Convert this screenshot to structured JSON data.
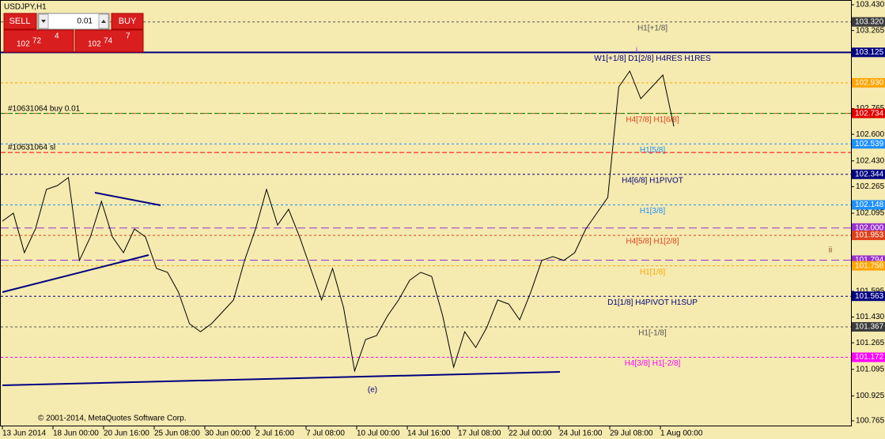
{
  "window": {
    "title": "USDJPY,H1"
  },
  "trade_panel": {
    "sell": "SELL",
    "buy": "BUY",
    "volume": "0.01",
    "bid": {
      "big": "102",
      "main": "72",
      "sup": "4"
    },
    "ask": {
      "big": "102",
      "main": "74",
      "sup": "7"
    }
  },
  "price_axis": {
    "range": [
      100.765,
      103.43
    ],
    "ticks": [
      {
        "value": 103.43,
        "label": "103.430"
      },
      {
        "value": 103.265,
        "label": "103.265"
      },
      {
        "value": 102.765,
        "label": "102.765"
      },
      {
        "value": 102.6,
        "label": "102.600"
      },
      {
        "value": 102.43,
        "label": "102.430"
      },
      {
        "value": 102.265,
        "label": "102.265"
      },
      {
        "value": 102.095,
        "label": "102.095"
      },
      {
        "value": 101.595,
        "label": "101.595"
      },
      {
        "value": 101.43,
        "label": "101.430"
      },
      {
        "value": 101.265,
        "label": "101.265"
      },
      {
        "value": 101.095,
        "label": "101.095"
      },
      {
        "value": 100.925,
        "label": "100.925"
      },
      {
        "value": 100.765,
        "label": "100.765"
      }
    ]
  },
  "time_axis": {
    "labels": [
      "13 Jun 2014",
      "18 Jun 00:00",
      "20 Jun 16:00",
      "25 Jun 08:00",
      "30 Jun 00:00",
      "2 Jul 16:00",
      "7 Jul 08:00",
      "10 Jul 00:00",
      "14 Jul 16:00",
      "17 Jul 08:00",
      "22 Jul 00:00",
      "24 Jul 16:00",
      "29 Jul 08:00",
      "1 Aug 00:00"
    ]
  },
  "levels": [
    {
      "price": 103.32,
      "label": "103.320",
      "color": "#555555",
      "tag_color": "#3c3c3c",
      "text": "H1[+1/8]"
    },
    {
      "price": 103.125,
      "label": "103.125",
      "color": "#000080",
      "tag_color": "#000080",
      "text": "W1[+1/8] D1[2/8] H4RES H1RES"
    },
    {
      "price": 102.93,
      "label": "102.930",
      "color": "#ffa500",
      "tag_color": "#ffa500"
    },
    {
      "price": 102.734,
      "label": "102.734",
      "color": "#e0401a",
      "tag_color": "#e00000",
      "text": "H4[7/8] H1[6/8]"
    },
    {
      "price": 102.539,
      "label": "102.539",
      "color": "#1e90ff",
      "tag_color": "#1e90ff",
      "text": "H1[5/8]"
    },
    {
      "price": 102.344,
      "label": "102.344",
      "color": "#000080",
      "tag_color": "#000080",
      "text": "H4[6/8] H1PIVOT"
    },
    {
      "price": 102.148,
      "label": "102.148",
      "color": "#1e90ff",
      "tag_color": "#1e90ff",
      "text": "H1[3/8]"
    },
    {
      "price": 102.0,
      "label": "102.000",
      "color": "#9932cc",
      "tag_color": "#9932cc"
    },
    {
      "price": 101.953,
      "label": "101.953",
      "color": "#e0401a",
      "tag_color": "#e0401a",
      "text": "H4[5/8] H1[2/8]"
    },
    {
      "price": 101.794,
      "label": "101.794",
      "color": "#9932cc",
      "tag_color": "#9932cc"
    },
    {
      "price": 101.758,
      "label": "101.758",
      "color": "#ffa500",
      "tag_color": "#ffa500",
      "text": "H1[1/8]"
    },
    {
      "price": 101.563,
      "label": "101.563",
      "color": "#000080",
      "tag_color": "#000080",
      "text": "D1[1/8] H4PIVOT H1SUP"
    },
    {
      "price": 101.367,
      "label": "101.367",
      "color": "#555555",
      "tag_color": "#3c3c3c",
      "text": "H1[-1/8]"
    },
    {
      "price": 101.172,
      "label": "101.172",
      "color": "#ff00ff",
      "tag_color": "#ff00ff",
      "text": "H4[3/8] H1[-2/8]"
    }
  ],
  "orders": [
    {
      "price": 102.734,
      "text": "#10631064 buy 0.01",
      "color": "#008000"
    },
    {
      "price": 102.484,
      "text": "#10631064 sl",
      "color": "#ff0000"
    }
  ],
  "price_path": {
    "color": "#000000",
    "values": [
      102.044,
      102.095,
      101.842,
      101.994,
      102.247,
      102.272,
      102.323,
      101.792,
      101.943,
      102.171,
      101.943,
      101.842,
      101.994,
      101.943,
      101.741,
      101.716,
      101.589,
      101.387,
      101.336,
      101.387,
      101.463,
      101.539,
      101.792,
      101.994,
      102.247,
      102.019,
      102.12,
      101.943,
      101.741,
      101.539,
      101.741,
      101.488,
      101.084,
      101.286,
      101.311,
      101.438,
      101.539,
      101.665,
      101.716,
      101.69,
      101.438,
      101.109,
      101.336,
      101.235,
      101.362,
      101.539,
      101.513,
      101.412,
      101.589,
      101.792,
      101.817,
      101.792,
      101.842,
      101.994,
      102.095,
      102.196,
      102.904,
      103.005,
      102.828,
      102.904,
      102.98,
      102.651
    ]
  },
  "annotations": {
    "wave_i": "i",
    "wave_ii": "ii",
    "wave_e": "(e)",
    "copyright": "© 2001-2014, MetaQuotes Software Corp."
  }
}
